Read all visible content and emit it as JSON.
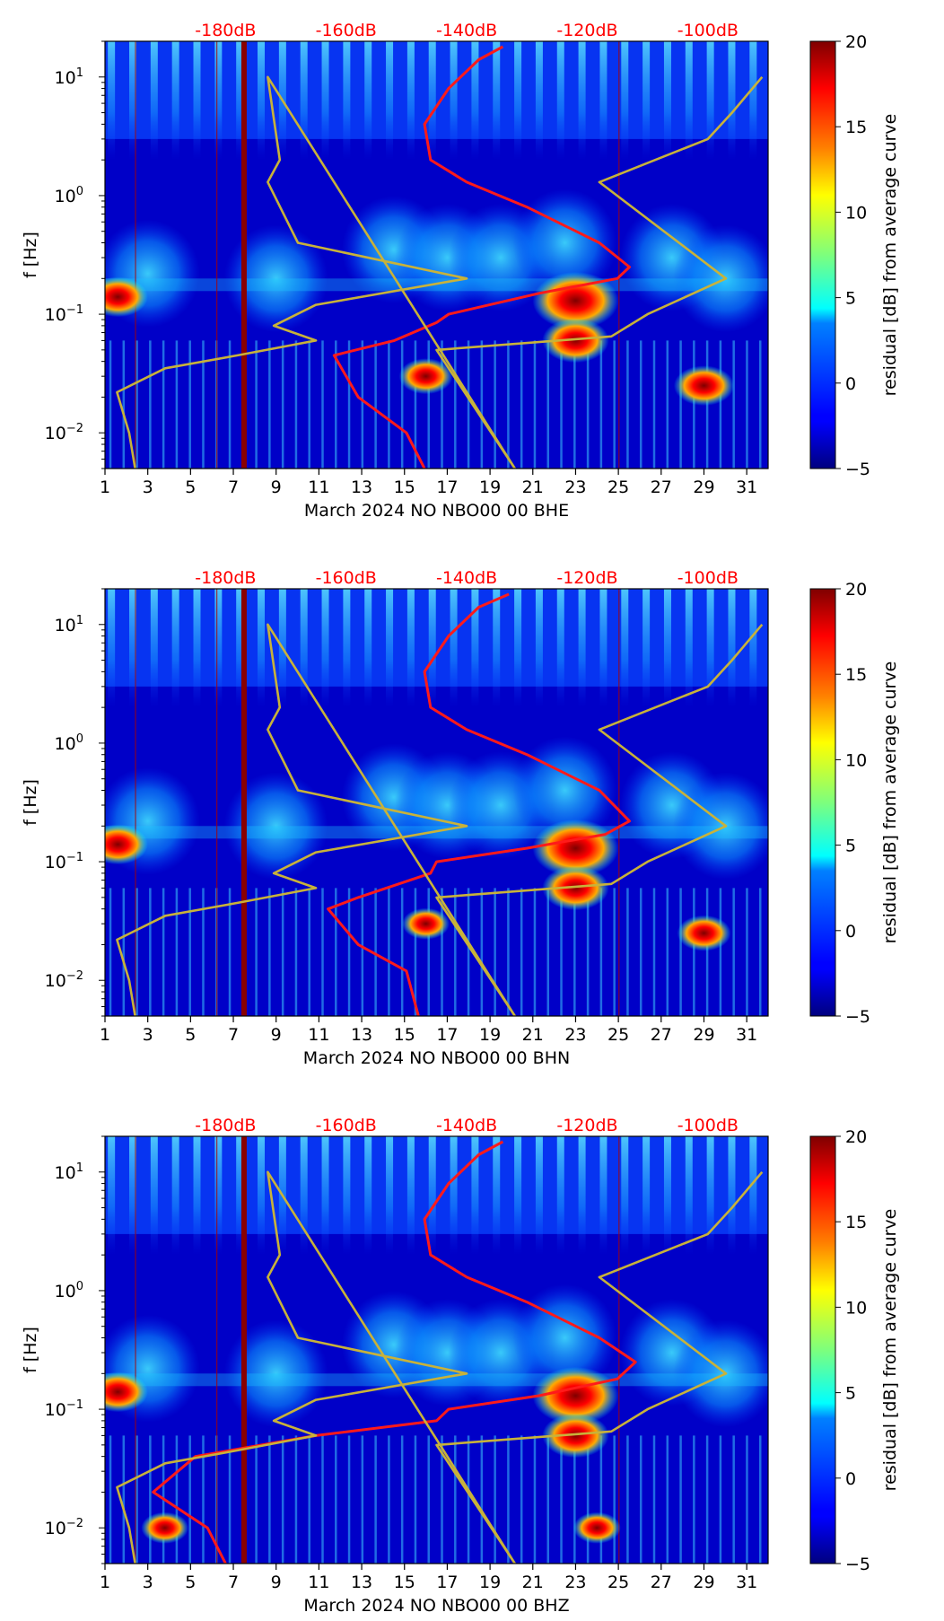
{
  "chart_data": [
    {
      "type": "heatmap",
      "xlabel": "March 2024 NO NBO00 00 BHE",
      "ylabel": "f [Hz]",
      "colorbar_label": "residual [dB] from average curve",
      "x_range": [
        1,
        32
      ],
      "y_range": [
        0.005,
        20
      ],
      "y_scale": "log",
      "x_ticks": [
        1,
        3,
        5,
        7,
        9,
        11,
        13,
        15,
        17,
        19,
        21,
        23,
        25,
        27,
        29,
        31
      ],
      "y_ticks": [
        {
          "value": 0.01,
          "base": "10",
          "exp": "−2"
        },
        {
          "value": 0.1,
          "base": "10",
          "exp": "−1"
        },
        {
          "value": 1,
          "base": "10",
          "exp": "0"
        },
        {
          "value": 10,
          "base": "10",
          "exp": "1"
        }
      ],
      "colorbar_range": [
        -5,
        20
      ],
      "colorbar_ticks": [
        "−5",
        "0",
        "5",
        "10",
        "15",
        "20"
      ],
      "top_db_labels": [
        "-180dB",
        "-160dB",
        "-140dB",
        "-120dB",
        "-100dB"
      ],
      "db_axis": {
        "min": -200,
        "max": -90
      },
      "hot_spots": [
        {
          "day": 23,
          "freq": 0.13,
          "residual": 20
        },
        {
          "day": 23,
          "freq": 0.06,
          "residual": 17
        },
        {
          "day": 1.6,
          "freq": 0.14,
          "residual": 16
        },
        {
          "day": 29,
          "freq": 0.025,
          "residual": 16
        },
        {
          "day": 16,
          "freq": 0.03,
          "residual": 15
        }
      ],
      "series": [
        {
          "name": "mean noise level",
          "color": "#ff1a1a",
          "points": [
            [
              -134,
              18
            ],
            [
              -138,
              14
            ],
            [
              -143,
              8
            ],
            [
              -147,
              4
            ],
            [
              -146,
              2
            ],
            [
              -140,
              1.3
            ],
            [
              -130,
              0.8
            ],
            [
              -118,
              0.4
            ],
            [
              -113,
              0.25
            ],
            [
              -115,
              0.2
            ],
            [
              -128,
              0.15
            ],
            [
              -143,
              0.1
            ],
            [
              -145,
              0.085
            ],
            [
              -152,
              0.06
            ],
            [
              -162,
              0.045
            ],
            [
              -158,
              0.02
            ],
            [
              -150,
              0.01
            ],
            [
              -147,
              0.005
            ]
          ]
        },
        {
          "name": "noise model",
          "color": "#c8b23a",
          "points": [
            [
              -195,
              0.005
            ],
            [
              -196,
              0.01
            ],
            [
              -198,
              0.022
            ],
            [
              -190,
              0.035
            ],
            [
              -178,
              0.045
            ],
            [
              -165,
              0.06
            ],
            [
              -172,
              0.08
            ],
            [
              -165,
              0.12
            ],
            [
              -140,
              0.2
            ],
            [
              -168,
              0.4
            ],
            [
              -173,
              1.3
            ],
            [
              -171,
              2
            ],
            [
              -173,
              10
            ],
            [
              -132,
              0.005
            ],
            [
              -145,
              0.05
            ],
            [
              -116,
              0.065
            ],
            [
              -110,
              0.1
            ],
            [
              -97,
              0.2
            ],
            [
              -118,
              1.3
            ],
            [
              -100,
              3
            ],
            [
              -96,
              5
            ],
            [
              -91,
              10
            ]
          ]
        }
      ]
    },
    {
      "type": "heatmap",
      "xlabel": "March 2024 NO NBO00 00 BHN",
      "ylabel": "f [Hz]",
      "colorbar_label": "residual [dB] from average curve",
      "x_range": [
        1,
        32
      ],
      "y_range": [
        0.005,
        20
      ],
      "y_scale": "log",
      "x_ticks": [
        1,
        3,
        5,
        7,
        9,
        11,
        13,
        15,
        17,
        19,
        21,
        23,
        25,
        27,
        29,
        31
      ],
      "y_ticks": [
        {
          "value": 0.01,
          "base": "10",
          "exp": "−2"
        },
        {
          "value": 0.1,
          "base": "10",
          "exp": "−1"
        },
        {
          "value": 1,
          "base": "10",
          "exp": "0"
        },
        {
          "value": 10,
          "base": "10",
          "exp": "1"
        }
      ],
      "colorbar_range": [
        -5,
        20
      ],
      "colorbar_ticks": [
        "−5",
        "0",
        "5",
        "10",
        "15",
        "20"
      ],
      "top_db_labels": [
        "-180dB",
        "-160dB",
        "-140dB",
        "-120dB",
        "-100dB"
      ],
      "db_axis": {
        "min": -200,
        "max": -90
      },
      "hot_spots": [
        {
          "day": 23,
          "freq": 0.13,
          "residual": 20
        },
        {
          "day": 23,
          "freq": 0.06,
          "residual": 17
        },
        {
          "day": 1.6,
          "freq": 0.14,
          "residual": 16
        },
        {
          "day": 29,
          "freq": 0.025,
          "residual": 15
        },
        {
          "day": 16,
          "freq": 0.03,
          "residual": 14
        }
      ],
      "series": [
        {
          "name": "mean noise level",
          "color": "#ff1a1a",
          "points": [
            [
              -133,
              18
            ],
            [
              -138,
              14
            ],
            [
              -143,
              8
            ],
            [
              -147,
              4
            ],
            [
              -146,
              2
            ],
            [
              -140,
              1.3
            ],
            [
              -130,
              0.8
            ],
            [
              -118,
              0.4
            ],
            [
              -113,
              0.22
            ],
            [
              -117,
              0.17
            ],
            [
              -130,
              0.13
            ],
            [
              -145,
              0.1
            ],
            [
              -146,
              0.08
            ],
            [
              -158,
              0.05
            ],
            [
              -163,
              0.04
            ],
            [
              -158,
              0.02
            ],
            [
              -150,
              0.012
            ],
            [
              -148,
              0.005
            ]
          ]
        },
        {
          "name": "noise model",
          "color": "#c8b23a",
          "points": [
            [
              -195,
              0.005
            ],
            [
              -196,
              0.01
            ],
            [
              -198,
              0.022
            ],
            [
              -190,
              0.035
            ],
            [
              -178,
              0.045
            ],
            [
              -165,
              0.06
            ],
            [
              -172,
              0.08
            ],
            [
              -165,
              0.12
            ],
            [
              -140,
              0.2
            ],
            [
              -168,
              0.4
            ],
            [
              -173,
              1.3
            ],
            [
              -171,
              2
            ],
            [
              -173,
              10
            ],
            [
              -132,
              0.005
            ],
            [
              -145,
              0.05
            ],
            [
              -116,
              0.065
            ],
            [
              -110,
              0.1
            ],
            [
              -97,
              0.2
            ],
            [
              -118,
              1.3
            ],
            [
              -100,
              3
            ],
            [
              -96,
              5
            ],
            [
              -91,
              10
            ]
          ]
        }
      ]
    },
    {
      "type": "heatmap",
      "xlabel": "March 2024 NO NBO00 00 BHZ",
      "ylabel": "f [Hz]",
      "colorbar_label": "residual [dB] from average curve",
      "x_range": [
        1,
        32
      ],
      "y_range": [
        0.005,
        20
      ],
      "y_scale": "log",
      "x_ticks": [
        1,
        3,
        5,
        7,
        9,
        11,
        13,
        15,
        17,
        19,
        21,
        23,
        25,
        27,
        29,
        31
      ],
      "y_ticks": [
        {
          "value": 0.01,
          "base": "10",
          "exp": "−2"
        },
        {
          "value": 0.1,
          "base": "10",
          "exp": "−1"
        },
        {
          "value": 1,
          "base": "10",
          "exp": "0"
        },
        {
          "value": 10,
          "base": "10",
          "exp": "1"
        }
      ],
      "colorbar_range": [
        -5,
        20
      ],
      "colorbar_ticks": [
        "−5",
        "0",
        "5",
        "10",
        "15",
        "20"
      ],
      "top_db_labels": [
        "-180dB",
        "-160dB",
        "-140dB",
        "-120dB",
        "-100dB"
      ],
      "db_axis": {
        "min": -200,
        "max": -90
      },
      "hot_spots": [
        {
          "day": 23,
          "freq": 0.13,
          "residual": 20
        },
        {
          "day": 23,
          "freq": 0.06,
          "residual": 17
        },
        {
          "day": 1.6,
          "freq": 0.14,
          "residual": 16
        },
        {
          "day": 3.8,
          "freq": 0.01,
          "residual": 14
        },
        {
          "day": 24,
          "freq": 0.01,
          "residual": 14
        }
      ],
      "series": [
        {
          "name": "mean noise level",
          "color": "#ff1a1a",
          "points": [
            [
              -134,
              18
            ],
            [
              -138,
              14
            ],
            [
              -143,
              8
            ],
            [
              -147,
              4
            ],
            [
              -146,
              2
            ],
            [
              -140,
              1.3
            ],
            [
              -130,
              0.8
            ],
            [
              -118,
              0.4
            ],
            [
              -112,
              0.25
            ],
            [
              -115,
              0.18
            ],
            [
              -128,
              0.13
            ],
            [
              -143,
              0.1
            ],
            [
              -145,
              0.08
            ],
            [
              -165,
              0.06
            ],
            [
              -185,
              0.04
            ],
            [
              -192,
              0.02
            ],
            [
              -183,
              0.01
            ],
            [
              -180,
              0.005
            ]
          ]
        },
        {
          "name": "noise model",
          "color": "#c8b23a",
          "points": [
            [
              -195,
              0.005
            ],
            [
              -196,
              0.01
            ],
            [
              -198,
              0.022
            ],
            [
              -190,
              0.035
            ],
            [
              -178,
              0.045
            ],
            [
              -165,
              0.06
            ],
            [
              -172,
              0.08
            ],
            [
              -165,
              0.12
            ],
            [
              -140,
              0.2
            ],
            [
              -168,
              0.4
            ],
            [
              -173,
              1.3
            ],
            [
              -171,
              2
            ],
            [
              -173,
              10
            ],
            [
              -132,
              0.005
            ],
            [
              -145,
              0.05
            ],
            [
              -116,
              0.065
            ],
            [
              -110,
              0.1
            ],
            [
              -97,
              0.2
            ],
            [
              -118,
              1.3
            ],
            [
              -100,
              3
            ],
            [
              -96,
              5
            ],
            [
              -91,
              10
            ]
          ]
        }
      ]
    }
  ]
}
